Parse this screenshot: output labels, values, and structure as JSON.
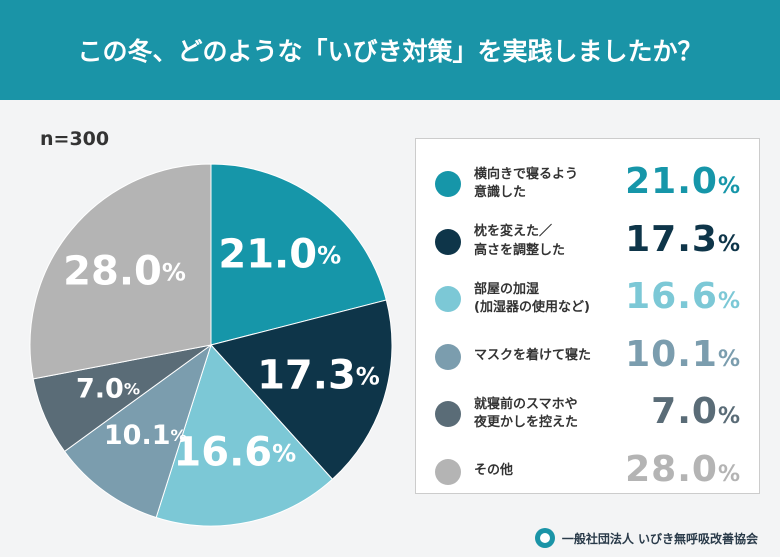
{
  "chart_data": {
    "type": "pie",
    "title": "この冬、どのような「いびき対策」を実践しましたか？",
    "note": "n=300",
    "categories": [
      "横向きで寝るよう\n意識した",
      "枕を変えた／\n高さを調整した",
      "部屋の加湿\n(加湿器の使用など)",
      "マスクを着けて寝た",
      "就寝前のスマホや\n夜更かしを控えた",
      "その他"
    ],
    "values": [
      21.0,
      17.3,
      16.6,
      10.1,
      7.0,
      28.0
    ],
    "value_labels": [
      "21.0%",
      "17.3%",
      "16.6%",
      "10.1%",
      "7.0%",
      "28.0%"
    ],
    "colors": [
      "#1696a9",
      "#0e3549",
      "#7cc8d6",
      "#7b9dae",
      "#5a6c77",
      "#b4b4b4"
    ]
  },
  "footer": "一般社団法人 いびき無呼吸改善協会"
}
